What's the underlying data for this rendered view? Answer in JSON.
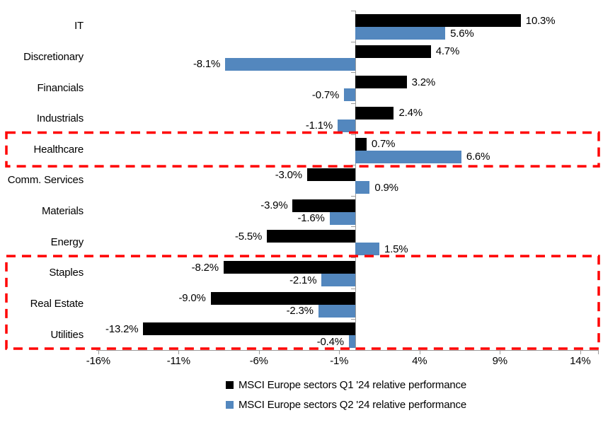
{
  "chart_data": {
    "type": "bar",
    "orientation": "horizontal",
    "title": "",
    "xlabel": "",
    "ylabel": "",
    "grid": false,
    "legend_position": "bottom",
    "categories": [
      "IT",
      "Discretionary",
      "Financials",
      "Industrials",
      "Healthcare",
      "Comm. Services",
      "Materials",
      "Energy",
      "Staples",
      "Real Estate",
      "Utilities"
    ],
    "series": [
      {
        "name": "MSCI Europe sectors Q1 '24 relative performance",
        "color": "#000000",
        "values": [
          10.3,
          4.7,
          3.2,
          2.4,
          0.7,
          -3.0,
          -3.9,
          -5.5,
          -8.2,
          -9.0,
          -13.2
        ],
        "labels": [
          "10.3%",
          "4.7%",
          "3.2%",
          "2.4%",
          "0.7%",
          "-3.0%",
          "-3.9%",
          "-5.5%",
          "-8.2%",
          "-9.0%",
          "-13.2%"
        ]
      },
      {
        "name": "MSCI Europe sectors Q2 '24 relative performance",
        "color": "#5387BE",
        "values": [
          5.6,
          -8.1,
          -0.7,
          -1.1,
          6.6,
          0.9,
          -1.6,
          1.5,
          -2.1,
          -2.3,
          -0.4
        ],
        "labels": [
          "5.6%",
          "-8.1%",
          "-0.7%",
          "-1.1%",
          "6.6%",
          "0.9%",
          "-1.6%",
          "1.5%",
          "-2.1%",
          "-2.3%",
          "-0.4%"
        ]
      }
    ],
    "x_axis": {
      "tick_labels": [
        "-16%",
        "-11%",
        "-6%",
        "-1%",
        "4%",
        "9%",
        "14%"
      ],
      "tick_values": [
        -16,
        -11,
        -6,
        -1,
        4,
        9,
        14
      ],
      "min": -16,
      "max": 14
    },
    "highlights": [
      {
        "categories": [
          "Healthcare"
        ],
        "color": "#FF0000",
        "style": "dashed"
      },
      {
        "categories": [
          "Staples",
          "Real Estate",
          "Utilities"
        ],
        "color": "#FF0000",
        "style": "dashed"
      }
    ],
    "axis_color": "#9B9B9B",
    "background_color": "#FFFFFF"
  }
}
